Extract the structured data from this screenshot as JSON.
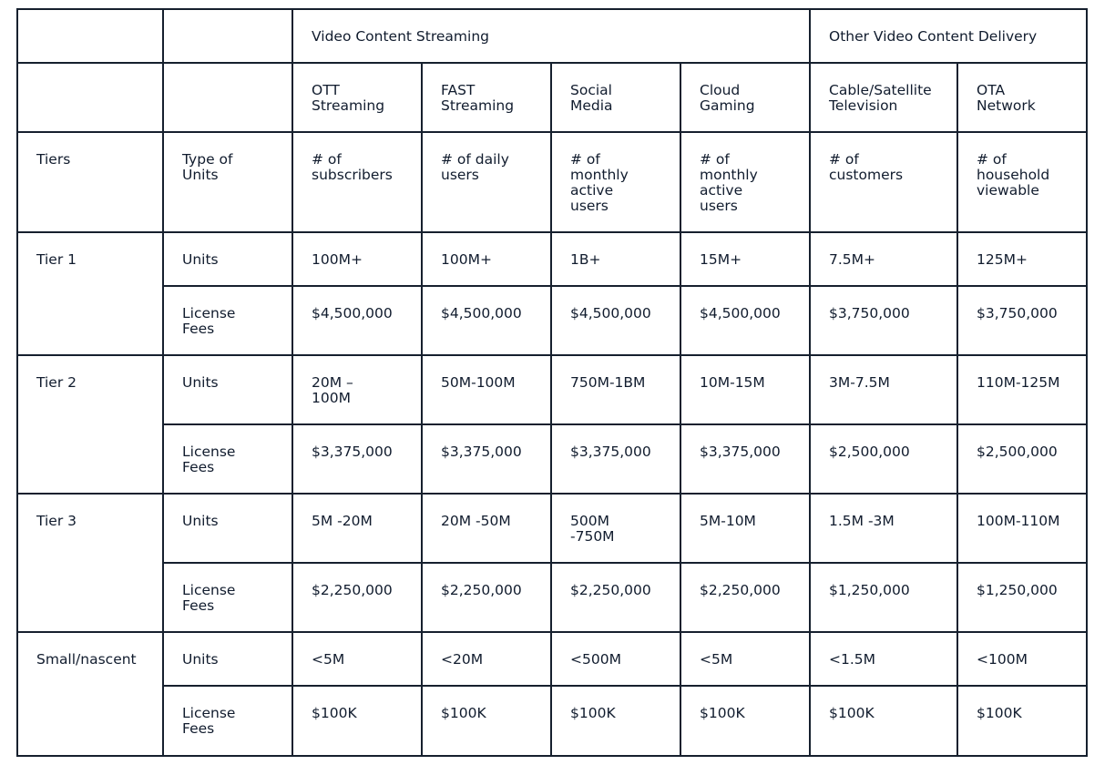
{
  "groups": [
    "Video Content Streaming",
    "Other Video Content Delivery"
  ],
  "columns": [
    [
      "OTT",
      "Streaming"
    ],
    [
      "FAST",
      "Streaming"
    ],
    [
      "Social",
      "Media"
    ],
    [
      "Cloud",
      "Gaming"
    ],
    [
      "Cable/Satellite",
      "Television"
    ],
    [
      "OTA",
      "Network"
    ]
  ],
  "type_row": {
    "tier_header": "Tiers",
    "type_header": [
      "Type of",
      "Units"
    ],
    "values": [
      [
        "# of",
        "subscribers"
      ],
      [
        "# of daily",
        "users"
      ],
      [
        "# of",
        "monthly",
        "active",
        "users"
      ],
      [
        "# of",
        "monthly",
        "active",
        "users"
      ],
      [
        "# of",
        "customers"
      ],
      [
        "# of",
        "household",
        "viewable"
      ]
    ]
  },
  "tiers": [
    {
      "name": "Tier 1",
      "units_label": "Units",
      "fees_label": [
        "License",
        "Fees"
      ],
      "units": [
        [
          "100M+"
        ],
        [
          "100M+"
        ],
        [
          "1B+"
        ],
        [
          "15M+"
        ],
        [
          "7.5M+"
        ],
        [
          "125M+"
        ]
      ],
      "fees": [
        "$4,500,000",
        "$4,500,000",
        "$4,500,000",
        "$4,500,000",
        "$3,750,000",
        "$3,750,000"
      ]
    },
    {
      "name": "Tier 2",
      "units_label": "Units",
      "fees_label": [
        "License",
        "Fees"
      ],
      "units": [
        [
          "20M –",
          "100M"
        ],
        [
          "50M-100M"
        ],
        [
          "750M-1BM"
        ],
        [
          "10M-15M"
        ],
        [
          "3M-7.5M"
        ],
        [
          "110M-125M"
        ]
      ],
      "fees": [
        "$3,375,000",
        "$3,375,000",
        "$3,375,000",
        "$3,375,000",
        "$2,500,000",
        "$2,500,000"
      ]
    },
    {
      "name": "Tier 3",
      "units_label": "Units",
      "fees_label": [
        "License",
        "Fees"
      ],
      "units": [
        [
          "5M -20M"
        ],
        [
          "20M -50M"
        ],
        [
          "500M",
          "-750M"
        ],
        [
          "5M-10M"
        ],
        [
          "1.5M -3M"
        ],
        [
          "100M-110M"
        ]
      ],
      "fees": [
        "$2,250,000",
        "$2,250,000",
        "$2,250,000",
        "$2,250,000",
        "$1,250,000",
        "$1,250,000"
      ]
    },
    {
      "name": "Small/nascent",
      "units_label": "Units",
      "fees_label": [
        "License",
        "Fees"
      ],
      "units": [
        [
          "<5M"
        ],
        [
          "<20M"
        ],
        [
          "<500M"
        ],
        [
          "<5M"
        ],
        [
          "<1.5M"
        ],
        [
          "<100M"
        ]
      ],
      "fees": [
        "$100K",
        "$100K",
        "$100K",
        "$100K",
        "$100K",
        "$100K"
      ]
    }
  ]
}
